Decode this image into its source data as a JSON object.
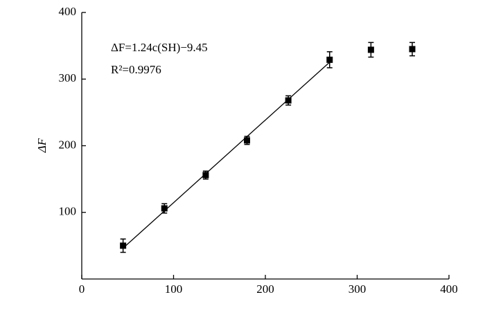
{
  "chart_data": {
    "type": "scatter",
    "annotations": [
      "ΔF=1.24c(SH)−9.45",
      "R²=0.9976"
    ],
    "ylabel": "ΔF",
    "x": [
      45,
      90,
      135,
      180,
      225,
      270,
      315,
      360
    ],
    "values": [
      50,
      106,
      156,
      208,
      268,
      329,
      344,
      345
    ],
    "errors": [
      10,
      7,
      6,
      6,
      7,
      12,
      11,
      10
    ],
    "fit": {
      "slope": 1.24,
      "intercept": -9.45,
      "x": [
        45,
        270
      ]
    },
    "color": "#000000",
    "xlim": [
      0,
      400
    ],
    "xticks": [
      0,
      100,
      200,
      300,
      400
    ],
    "ylim": [
      0,
      400
    ],
    "yticks": [
      100,
      200,
      300,
      400
    ],
    "grid": false
  }
}
